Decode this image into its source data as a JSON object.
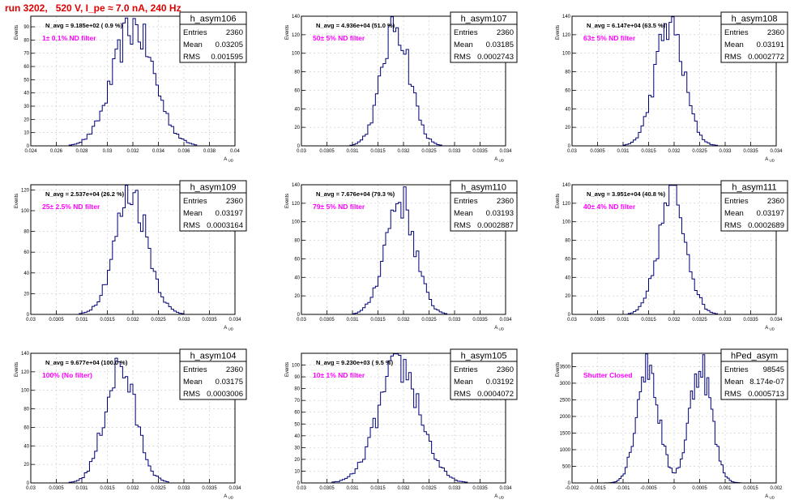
{
  "title": "run 3202,   520 V, I_pe ≈ 7.0 nA, 240 Hz",
  "chart_data": [
    {
      "type": "bar",
      "name": "h_asym106",
      "xlabel": "A_{UD}",
      "ylabel": "Events",
      "xlim": [
        0.024,
        0.04
      ],
      "ylim": [
        0,
        98
      ],
      "xticks": [
        "0.024",
        "0.026",
        "0.028",
        "0.03",
        "0.032",
        "0.034",
        "0.036",
        "0.038",
        "0.04"
      ],
      "yticks": [
        0,
        10,
        20,
        30,
        40,
        50,
        60,
        70,
        80,
        90
      ],
      "stats": {
        "entries_label": "Entries",
        "entries": "2360",
        "mean_label": "Mean",
        "mean": "0.03205",
        "rms_label": "RMS",
        "rms": "0.001595"
      },
      "navg": "N_avg = 9.185e+02 ( 0.9 %)",
      "filter": "1± 0.1% ND filter",
      "dist": {
        "mean": 0.03205,
        "rms": 0.001595,
        "peak": 90,
        "nbins": 80
      }
    },
    {
      "type": "bar",
      "name": "h_asym107",
      "xlabel": "A_{UD}",
      "ylabel": "Events",
      "xlim": [
        0.03,
        0.034
      ],
      "ylim": [
        0,
        140
      ],
      "xticks": [
        "0.03",
        "0.0305",
        "0.031",
        "0.0315",
        "0.032",
        "0.0325",
        "0.033",
        "0.0335",
        "0.034"
      ],
      "yticks": [
        0,
        20,
        40,
        60,
        80,
        100,
        120,
        140
      ],
      "stats": {
        "entries_label": "Entries",
        "entries": "2360",
        "mean_label": "Mean",
        "mean": "0.03185",
        "rms_label": "RMS",
        "rms": "0.0002743"
      },
      "navg": "N_avg = 4.936e+04 (51.0 %)",
      "filter": "50± 5% ND filter",
      "dist": {
        "mean": 0.03185,
        "rms": 0.0002743,
        "peak": 132,
        "nbins": 80
      }
    },
    {
      "type": "bar",
      "name": "h_asym108",
      "xlabel": "A_{UD}",
      "ylabel": "Events",
      "xlim": [
        0.03,
        0.034
      ],
      "ylim": [
        0,
        140
      ],
      "xticks": [
        "0.03",
        "0.0305",
        "0.031",
        "0.0315",
        "0.032",
        "0.0325",
        "0.033",
        "0.0335",
        "0.034"
      ],
      "yticks": [
        0,
        20,
        40,
        60,
        80,
        100,
        120,
        140
      ],
      "stats": {
        "entries_label": "Entries",
        "entries": "2360",
        "mean_label": "Mean",
        "mean": "0.03191",
        "rms_label": "RMS",
        "rms": "0.0002772"
      },
      "navg": "N_avg = 6.147e+04 (63.5 %)",
      "filter": "63± 5% ND filter",
      "dist": {
        "mean": 0.03191,
        "rms": 0.0002772,
        "peak": 132,
        "nbins": 80
      }
    },
    {
      "type": "bar",
      "name": "h_asym109",
      "xlabel": "A_{UD}",
      "ylabel": "Events",
      "xlim": [
        0.03,
        0.034
      ],
      "ylim": [
        0,
        125
      ],
      "xticks": [
        "0.03",
        "0.0305",
        "0.031",
        "0.0315",
        "0.032",
        "0.0325",
        "0.033",
        "0.0335",
        "0.034"
      ],
      "yticks": [
        0,
        20,
        40,
        60,
        80,
        100,
        120
      ],
      "stats": {
        "entries_label": "Entries",
        "entries": "2360",
        "mean_label": "Mean",
        "mean": "0.03197",
        "rms_label": "RMS",
        "rms": "0.0003164"
      },
      "navg": "N_avg = 2.537e+04 (26.2 %)",
      "filter": "25± 2.5% ND filter",
      "dist": {
        "mean": 0.03197,
        "rms": 0.0003164,
        "peak": 118,
        "nbins": 80
      }
    },
    {
      "type": "bar",
      "name": "h_asym110",
      "xlabel": "A_{UD}",
      "ylabel": "Events",
      "xlim": [
        0.03,
        0.034
      ],
      "ylim": [
        0,
        140
      ],
      "xticks": [
        "0.03",
        "0.0305",
        "0.031",
        "0.0315",
        "0.032",
        "0.0325",
        "0.033",
        "0.0335",
        "0.034"
      ],
      "yticks": [
        0,
        20,
        40,
        60,
        80,
        100,
        120,
        140
      ],
      "stats": {
        "entries_label": "Entries",
        "entries": "2360",
        "mean_label": "Mean",
        "mean": "0.03193",
        "rms_label": "RMS",
        "rms": "0.0002887"
      },
      "navg": "N_avg = 7.676e+04 (79.3 %)",
      "filter": "79± 5% ND filter",
      "dist": {
        "mean": 0.03193,
        "rms": 0.0002887,
        "peak": 125,
        "nbins": 80
      }
    },
    {
      "type": "bar",
      "name": "h_asym111",
      "xlabel": "A_{UD}",
      "ylabel": "Events",
      "xlim": [
        0.03,
        0.034
      ],
      "ylim": [
        0,
        140
      ],
      "xticks": [
        "0.03",
        "0.0305",
        "0.031",
        "0.0315",
        "0.032",
        "0.0325",
        "0.033",
        "0.0335",
        "0.034"
      ],
      "yticks": [
        0,
        20,
        40,
        60,
        80,
        100,
        120,
        140
      ],
      "stats": {
        "entries_label": "Entries",
        "entries": "2360",
        "mean_label": "Mean",
        "mean": "0.03197",
        "rms_label": "RMS",
        "rms": "0.0002689"
      },
      "navg": "N_avg = 3.951e+04 (40.8 %)",
      "filter": "40± 4% ND filter",
      "dist": {
        "mean": 0.03197,
        "rms": 0.0002689,
        "peak": 130,
        "nbins": 80
      }
    },
    {
      "type": "bar",
      "name": "h_asym104",
      "xlabel": "A_{UD}",
      "ylabel": "Events",
      "xlim": [
        0.03,
        0.034
      ],
      "ylim": [
        0,
        140
      ],
      "xticks": [
        "0.03",
        "0.0305",
        "0.031",
        "0.0315",
        "0.032",
        "0.0325",
        "0.033",
        "0.0335",
        "0.034"
      ],
      "yticks": [
        0,
        20,
        40,
        60,
        80,
        100,
        120,
        140
      ],
      "stats": {
        "entries_label": "Entries",
        "entries": "2360",
        "mean_label": "Mean",
        "mean": "0.03175",
        "rms_label": "RMS",
        "rms": "0.0003006"
      },
      "navg": "N_avg = 9.677e+04 (100.0 %)",
      "filter": "100% (No filter)",
      "dist": {
        "mean": 0.03175,
        "rms": 0.0003006,
        "peak": 125,
        "nbins": 80
      }
    },
    {
      "type": "bar",
      "name": "h_asym105",
      "xlabel": "A_{UD}",
      "ylabel": "Events",
      "xlim": [
        0.03,
        0.034
      ],
      "ylim": [
        0,
        110
      ],
      "xticks": [
        "0.03",
        "0.0305",
        "0.031",
        "0.0315",
        "0.032",
        "0.0325",
        "0.033",
        "0.0335",
        "0.034"
      ],
      "yticks": [
        0,
        10,
        20,
        30,
        40,
        50,
        60,
        70,
        80,
        90,
        100
      ],
      "stats": {
        "entries_label": "Entries",
        "entries": "2360",
        "mean_label": "Mean",
        "mean": "0.03192",
        "rms_label": "RMS",
        "rms": "0.0004072"
      },
      "navg": "N_avg = 9.230e+03 ( 9.5 %)",
      "filter": "10± 1% ND filter",
      "dist": {
        "mean": 0.03192,
        "rms": 0.0004072,
        "peak": 100,
        "nbins": 80
      }
    },
    {
      "type": "bar",
      "name": "hPed_asym",
      "xlabel": "A_{UD}",
      "ylabel": "Events",
      "xlim": [
        -0.002,
        0.002
      ],
      "ylim": [
        0,
        3900
      ],
      "xticks": [
        "-0.002",
        "-0.0015",
        "-0.001",
        "-0.0005",
        "0",
        "0.0005",
        "0.001",
        "0.0015",
        "0.002"
      ],
      "yticks": [
        0,
        500,
        1000,
        1500,
        2000,
        2500,
        3000,
        3500
      ],
      "stats": {
        "entries_label": "Entries",
        "entries": "98545",
        "mean_label": "Mean",
        "mean": "8.174e-07",
        "rms_label": "RMS",
        "rms": "0.0005713"
      },
      "navg": "",
      "filter": "Shutter Closed",
      "dist": {
        "bimodal": true,
        "centers": [
          -0.00052,
          0.00052
        ],
        "sigma": 0.00021,
        "peak": 3600,
        "nbins": 100
      }
    }
  ],
  "colors": {
    "title": "#e00000",
    "line": "#00007a",
    "filter_text": "#ff00ff",
    "frame": "#000000",
    "grid": "#c8c8c8"
  }
}
